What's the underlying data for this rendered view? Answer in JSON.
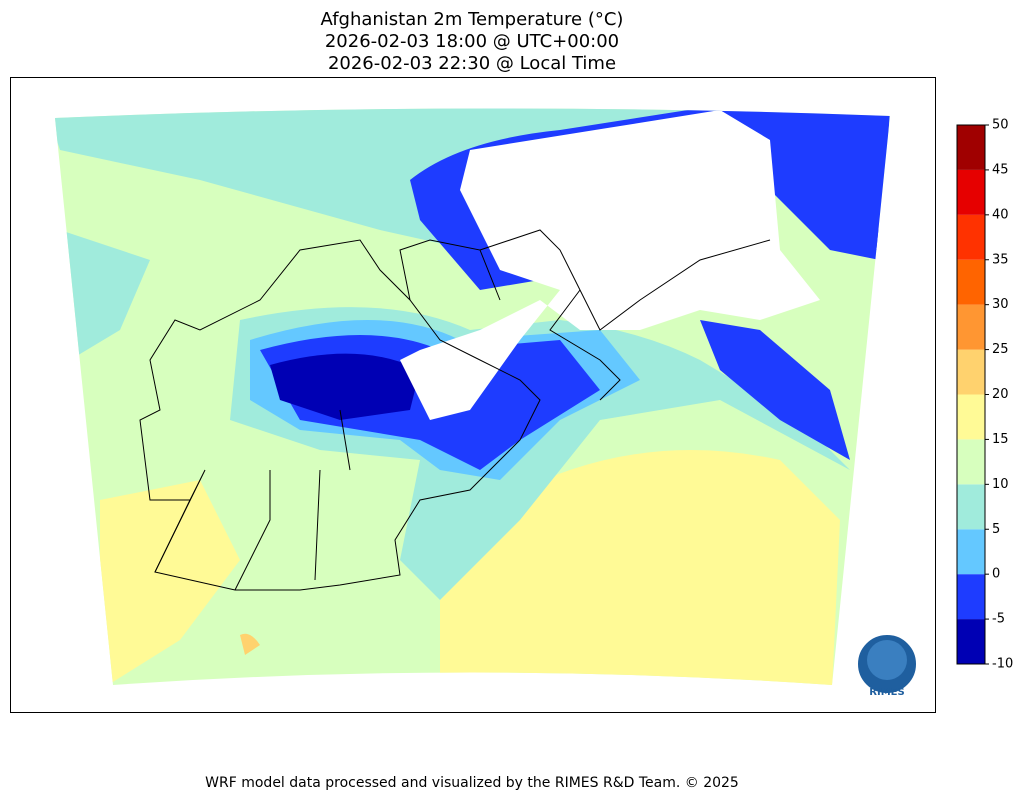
{
  "title": [
    "Afghanistan 2m Temperature (°C)",
    "2026-02-03 18:00 @ UTC+00:00",
    "2026-02-03 22:30 @ Local Time"
  ],
  "colorbar": {
    "ticks": [
      -10,
      -5,
      0,
      5,
      10,
      15,
      20,
      25,
      30,
      35,
      40,
      45,
      50
    ],
    "colors": [
      "#0000b4",
      "#1e3cff",
      "#64c8ff",
      "#a0ebdc",
      "#d7ffbe",
      "#fffa96",
      "#ffd26e",
      "#ff9632",
      "#ff6400",
      "#ff3200",
      "#e60000",
      "#a00000"
    ]
  },
  "logo": "RIMES",
  "footer": "WRF model data processed and visualized by the RIMES R&D Team. © 2025"
}
